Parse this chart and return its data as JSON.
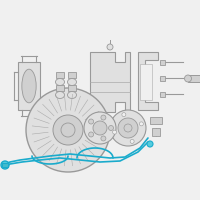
{
  "bg_color": "#f0f0f0",
  "lc": "#aaaaaa",
  "dc": "#999999",
  "fc": "#e0e0e0",
  "fc2": "#d0d0d0",
  "wire_color": "#1aabcc",
  "fig_w": 2.0,
  "fig_h": 2.0,
  "dpi": 100,
  "xlim": [
    0,
    200
  ],
  "ylim": [
    0,
    200
  ]
}
